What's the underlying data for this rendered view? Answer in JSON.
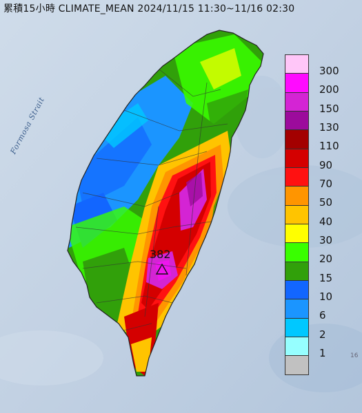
{
  "title": "累積15小時 CLIMATE_MEAN 2024/11/15 11:30~11/16 02:30",
  "strait_label": "Formosa Strait",
  "legend": {
    "labels": [
      "300",
      "200",
      "150",
      "130",
      "110",
      "90",
      "70",
      "50",
      "40",
      "30",
      "20",
      "15",
      "10",
      "6",
      "2",
      "1"
    ],
    "colors": [
      "#ffc6f8",
      "#ff0bff",
      "#d424d4",
      "#9c0b9c",
      "#a30000",
      "#d40000",
      "#ff1111",
      "#ff9500",
      "#ffc400",
      "#ffff00",
      "#39ff00",
      "#31a00a",
      "#1266ff",
      "#1b95ff",
      "#00c8ff",
      "#96ffff",
      "#c1c1c1"
    ]
  },
  "peak": {
    "value": "382",
    "marker": "triangle-icon"
  },
  "edge_mark": "16"
}
